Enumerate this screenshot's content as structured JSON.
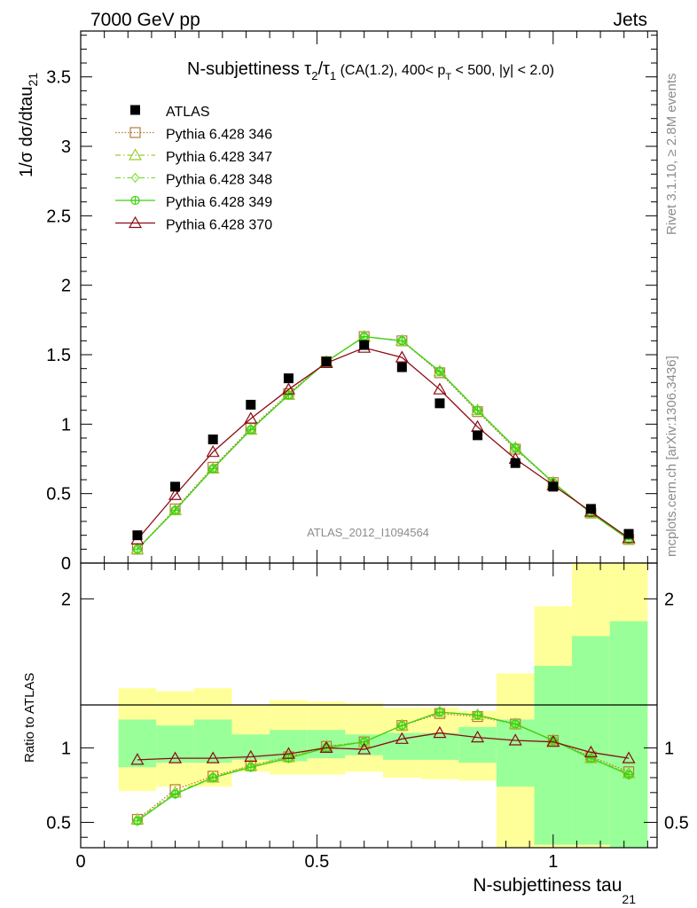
{
  "header": {
    "left": "7000 GeV pp",
    "right": "Jets"
  },
  "side_labels": {
    "rivet": "Rivet 3.1.10, ≥ 2.8M events",
    "mcplots": "mcplots.cern.ch [arXiv:1306.3436]"
  },
  "chart_data": [
    {
      "type": "line",
      "panel": "main",
      "title": {
        "prefix": "N-subjettiness ",
        "tau": "τ",
        "sub2": "2",
        "slash": "/",
        "sub1": "1",
        "cond_a": " (CA(1.2), 400< p",
        "cond_sub": "T",
        "cond_b": " < 500, |y| < 2.0)"
      },
      "ylabel": {
        "main": "1/σ dσ/dtau",
        "sub": "21"
      },
      "xlabel": {
        "main": "N-subjettiness tau",
        "sub": "21"
      },
      "watermark": "ATLAS_2012_I1094564",
      "xlim": [
        0,
        1.22
      ],
      "ylim": [
        0,
        3.83
      ],
      "yticks": [
        0.5,
        1,
        1.5,
        2,
        2.5,
        3,
        3.5
      ],
      "yticklabels": [
        "0.5",
        "1",
        "1.5",
        "2",
        "2.5",
        "3",
        "3.5"
      ],
      "yticklabel_partial": "0",
      "x": [
        0.12,
        0.2,
        0.28,
        0.36,
        0.44,
        0.52,
        0.6,
        0.68,
        0.76,
        0.84,
        0.92,
        1.0,
        1.08,
        1.16
      ],
      "data": {
        "name": "ATLAS",
        "values": [
          0.2,
          0.55,
          0.89,
          1.14,
          1.33,
          1.45,
          1.57,
          1.41,
          1.15,
          0.92,
          0.72,
          0.55,
          0.39,
          0.21
        ]
      },
      "series": [
        {
          "name": "Pythia 6.428 346",
          "color": "#b47d3c",
          "marker": "square-open",
          "dash": "1.5,2",
          "values": [
            0.1,
            0.39,
            0.69,
            0.97,
            1.22,
            1.45,
            1.63,
            1.6,
            1.37,
            1.09,
            0.82,
            0.58,
            0.36,
            0.17
          ]
        },
        {
          "name": "Pythia 6.428 347",
          "color": "#9acd32",
          "marker": "triangle-open",
          "dash": "6,3,1.5,3",
          "values": [
            0.1,
            0.38,
            0.68,
            0.96,
            1.21,
            1.45,
            1.63,
            1.6,
            1.38,
            1.1,
            0.83,
            0.58,
            0.36,
            0.17
          ]
        },
        {
          "name": "Pythia 6.428 348",
          "color": "#7ee03c",
          "marker": "diamond-open",
          "dash": "6,3,1.5,3",
          "values": [
            0.1,
            0.38,
            0.68,
            0.96,
            1.21,
            1.45,
            1.63,
            1.6,
            1.38,
            1.1,
            0.83,
            0.58,
            0.36,
            0.17
          ]
        },
        {
          "name": "Pythia 6.428 349",
          "color": "#3cd20f",
          "marker": "circle-cross",
          "dash": "",
          "values": [
            0.1,
            0.38,
            0.68,
            0.96,
            1.21,
            1.45,
            1.63,
            1.6,
            1.38,
            1.1,
            0.83,
            0.58,
            0.36,
            0.17
          ]
        },
        {
          "name": "Pythia 6.428 370",
          "color": "#8c0a14",
          "marker": "triangle-open",
          "dash": "",
          "values": [
            0.17,
            0.49,
            0.8,
            1.04,
            1.25,
            1.44,
            1.55,
            1.48,
            1.25,
            0.98,
            0.75,
            0.56,
            0.37,
            0.18
          ]
        }
      ]
    },
    {
      "type": "line",
      "panel": "ratio",
      "ylabel": "Ratio to ATLAS",
      "ylim": [
        0.33,
        2.24
      ],
      "yticks": [
        0.5,
        1,
        2
      ],
      "yticklabels": [
        "0.5",
        "1",
        "2"
      ],
      "xticks": [
        0,
        0.5,
        1
      ],
      "xticklabels": [
        "0",
        "0.5",
        "1"
      ],
      "bins": [
        [
          0.08,
          0.16
        ],
        [
          0.16,
          0.24
        ],
        [
          0.24,
          0.32
        ],
        [
          0.32,
          0.4
        ],
        [
          0.4,
          0.48
        ],
        [
          0.48,
          0.56
        ],
        [
          0.56,
          0.64
        ],
        [
          0.64,
          0.72
        ],
        [
          0.72,
          0.8
        ],
        [
          0.8,
          0.88
        ],
        [
          0.88,
          0.96
        ],
        [
          0.96,
          1.04
        ],
        [
          1.04,
          1.12
        ],
        [
          1.12,
          1.2
        ]
      ],
      "band_outer": [
        [
          0.71,
          1.4
        ],
        [
          0.74,
          1.38
        ],
        [
          0.74,
          1.4
        ],
        [
          0.84,
          1.29
        ],
        [
          0.82,
          1.32
        ],
        [
          0.82,
          1.31
        ],
        [
          0.84,
          1.3
        ],
        [
          0.8,
          1.27
        ],
        [
          0.79,
          1.27
        ],
        [
          0.78,
          1.25
        ],
        [
          0.33,
          1.5
        ],
        [
          0.33,
          1.95
        ],
        [
          0.33,
          2.24
        ],
        [
          0.33,
          2.24
        ]
      ],
      "band_inner": [
        [
          0.87,
          1.19
        ],
        [
          0.9,
          1.15
        ],
        [
          0.9,
          1.19
        ],
        [
          0.92,
          1.09
        ],
        [
          0.91,
          1.12
        ],
        [
          0.93,
          1.12
        ],
        [
          0.95,
          1.09
        ],
        [
          0.92,
          1.1
        ],
        [
          0.92,
          1.1
        ],
        [
          0.9,
          1.14
        ],
        [
          0.74,
          1.19
        ],
        [
          0.35,
          1.55
        ],
        [
          0.35,
          1.75
        ],
        [
          0.33,
          1.85
        ]
      ],
      "series": [
        {
          "name": "Pythia 6.428 346",
          "values": [
            0.52,
            0.72,
            0.81,
            0.88,
            0.94,
            1.01,
            1.04,
            1.15,
            1.23,
            1.21,
            1.16,
            1.05,
            0.94,
            0.84
          ]
        },
        {
          "name": "Pythia 6.428 347",
          "values": [
            0.52,
            0.7,
            0.8,
            0.88,
            0.94,
            1.01,
            1.04,
            1.15,
            1.24,
            1.22,
            1.16,
            1.05,
            0.93,
            0.83
          ]
        },
        {
          "name": "Pythia 6.428 348",
          "values": [
            0.51,
            0.69,
            0.8,
            0.87,
            0.93,
            1.0,
            1.04,
            1.15,
            1.24,
            1.22,
            1.16,
            1.05,
            0.93,
            0.82
          ]
        },
        {
          "name": "Pythia 6.428 349",
          "values": [
            0.51,
            0.69,
            0.8,
            0.87,
            0.93,
            1.0,
            1.04,
            1.15,
            1.24,
            1.22,
            1.16,
            1.05,
            0.93,
            0.82
          ]
        },
        {
          "name": "Pythia 6.428 370",
          "values": [
            0.92,
            0.93,
            0.93,
            0.94,
            0.96,
            1.0,
            0.99,
            1.06,
            1.1,
            1.07,
            1.05,
            1.04,
            0.97,
            0.93
          ]
        }
      ]
    }
  ],
  "colors": {
    "band_outer": "#ffff99",
    "band_inner": "#99ff99",
    "watermark": "#8c8c8c",
    "data": "#000000"
  }
}
